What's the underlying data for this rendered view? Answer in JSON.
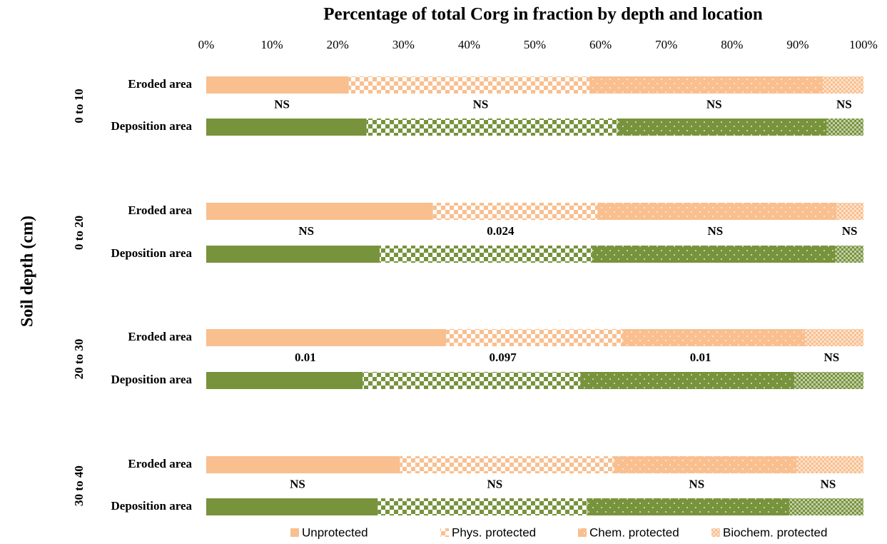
{
  "chart_data": {
    "type": "stacked-barh",
    "title": "Percentage of total Corg in fraction by depth and location",
    "y_label": "Soil depth (cm)",
    "groups": [
      "0 to 10",
      "0 to 20",
      "20 to 30",
      "30 to 40"
    ],
    "categories": [
      "Eroded area",
      "Deposition area",
      "Eroded area",
      "Deposition area",
      "Eroded area",
      "Deposition area",
      "Eroded area",
      "Deposition area"
    ],
    "bar_colors": [
      "#f9bf8f",
      "#77933c",
      "#f9bf8f",
      "#77933c",
      "#f9bf8f",
      "#77933c",
      "#f9bf8f",
      "#77933c"
    ],
    "series": [
      {
        "name": "Unprotected",
        "color": "#f9bf8f",
        "pattern": "solid",
        "values": [
          21.7,
          24.4,
          34.5,
          26.4,
          36.5,
          23.8,
          29.5,
          26.1
        ]
      },
      {
        "name": "Phys. protected",
        "color": "#f9bf8f",
        "pattern": "checker",
        "values": [
          36.6,
          38.2,
          25.0,
          32.3,
          26.8,
          33.1,
          32.5,
          31.9
        ]
      },
      {
        "name": "Chem. protected",
        "color": "#f9bf8f",
        "pattern": "dots",
        "values": [
          35.5,
          31.8,
          36.4,
          37.0,
          27.8,
          32.6,
          27.8,
          30.7
        ]
      },
      {
        "name": "Biochem. protected",
        "color": "#f9bf8f",
        "pattern": "fine-checker",
        "values": [
          6.2,
          5.6,
          4.1,
          4.3,
          8.9,
          10.5,
          10.2,
          11.3
        ]
      }
    ],
    "annotations": [
      [
        "NS",
        "NS",
        "NS",
        "NS"
      ],
      [
        "NS",
        "0.024",
        "NS",
        "NS"
      ],
      [
        "0.01",
        "0.097",
        "0.01",
        "NS"
      ],
      [
        "NS",
        "NS",
        "NS",
        "NS"
      ]
    ],
    "xlim": [
      0,
      100
    ],
    "xticks": [
      {
        "value": 0,
        "label": "0%"
      },
      {
        "value": 10,
        "label": "10%"
      },
      {
        "value": 20,
        "label": "20%"
      },
      {
        "value": 30,
        "label": "30%"
      },
      {
        "value": 40,
        "label": "40%"
      },
      {
        "value": 50,
        "label": "50%"
      },
      {
        "value": 60,
        "label": "60%"
      },
      {
        "value": 70,
        "label": "70%"
      },
      {
        "value": 80,
        "label": "80%"
      },
      {
        "value": 90,
        "label": "90%"
      },
      {
        "value": 100,
        "label": "100%"
      }
    ],
    "legend": "bottom"
  }
}
